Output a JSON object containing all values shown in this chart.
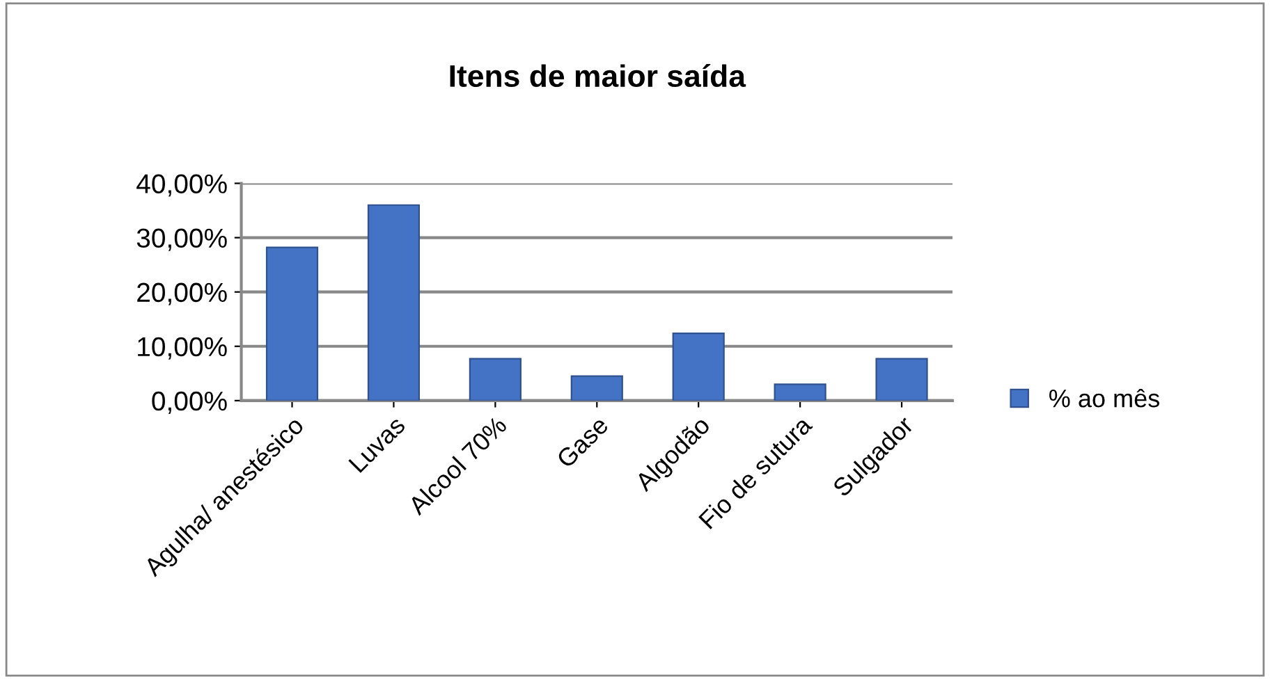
{
  "chart_data": {
    "type": "bar",
    "title": "Itens de maior saída",
    "categories": [
      "Agulha/ anestésico",
      "Luvas",
      "Alcool 70%",
      "Gase",
      "Algodão",
      "Fio de sutura",
      "Sulgador"
    ],
    "series": [
      {
        "name": "% ao mês",
        "color": "#4472c4",
        "values": [
          28.2,
          36.0,
          7.7,
          4.5,
          12.4,
          3.0,
          7.7
        ]
      }
    ],
    "ylim": [
      0,
      40
    ],
    "yticks": [
      {
        "value": 0,
        "label": "0,00%"
      },
      {
        "value": 10,
        "label": "10,00%"
      },
      {
        "value": 20,
        "label": "20,00%"
      },
      {
        "value": 30,
        "label": "30,00%"
      },
      {
        "value": 40,
        "label": "40,00%"
      }
    ],
    "grid": "y",
    "legend": "right"
  }
}
